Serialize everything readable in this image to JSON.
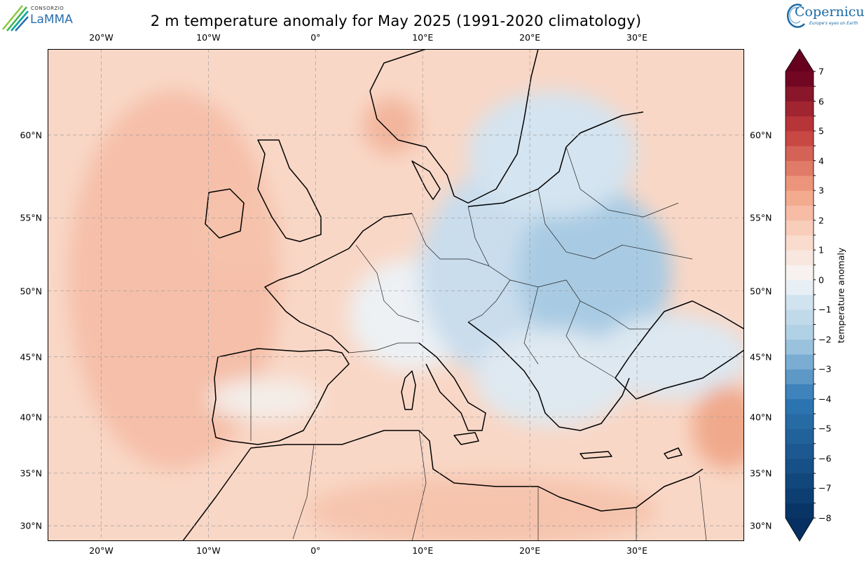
{
  "title": "2 m temperature anomaly for May 2025 (1991-2020 climatology)",
  "logos": {
    "left": {
      "small": "CONSORZIO",
      "big": "LaMMA"
    },
    "right": {
      "word": "Copernicus",
      "tagline": "Europe's eyes on Earth"
    }
  },
  "map": {
    "lon_range": [
      -25,
      40
    ],
    "lat_range": [
      28.5,
      64.5
    ],
    "projection": "Mercator",
    "gridlines": "dashed",
    "lon_ticks": [
      {
        "lon": -20,
        "label": "20°W"
      },
      {
        "lon": -10,
        "label": "10°W"
      },
      {
        "lon": 0,
        "label": "0°"
      },
      {
        "lon": 10,
        "label": "10°E"
      },
      {
        "lon": 20,
        "label": "20°E"
      },
      {
        "lon": 30,
        "label": "30°E"
      }
    ],
    "lat_ticks": [
      {
        "lat": 30,
        "label": "30°N"
      },
      {
        "lat": 35,
        "label": "35°N"
      },
      {
        "lat": 40,
        "label": "40°N"
      },
      {
        "lat": 45,
        "label": "45°N"
      },
      {
        "lat": 50,
        "label": "50°N"
      },
      {
        "lat": 55,
        "label": "55°N"
      },
      {
        "lat": 60,
        "label": "60°N"
      }
    ]
  },
  "colorbar": {
    "label": "temperature anomaly",
    "range": [
      -8,
      7
    ],
    "ticks": [
      {
        "v": 7,
        "label": "7"
      },
      {
        "v": 6,
        "label": "6"
      },
      {
        "v": 5,
        "label": "5"
      },
      {
        "v": 4,
        "label": "4"
      },
      {
        "v": 3,
        "label": "3"
      },
      {
        "v": 2,
        "label": "2"
      },
      {
        "v": 1,
        "label": "1"
      },
      {
        "v": 0,
        "label": "0"
      },
      {
        "v": -1,
        "label": "−1"
      },
      {
        "v": -2,
        "label": "−2"
      },
      {
        "v": -3,
        "label": "−3"
      },
      {
        "v": -4,
        "label": "−4"
      },
      {
        "v": -5,
        "label": "−5"
      },
      {
        "v": -6,
        "label": "−6"
      },
      {
        "v": -7,
        "label": "−7"
      },
      {
        "v": -8,
        "label": "−8"
      }
    ],
    "colors": {
      "max_extend": "#67001f",
      "min_extend": "#053061",
      "zero": "#f7f7f7",
      "mild_warm": "#f9d6c4",
      "warm": "#f2a285",
      "mild_cold": "#d8e7f0",
      "cold": "#a9cce3"
    }
  }
}
